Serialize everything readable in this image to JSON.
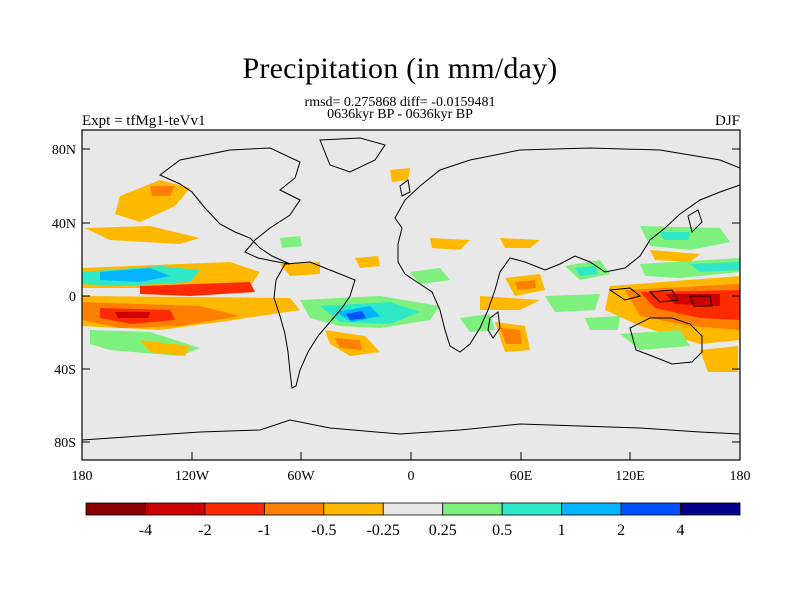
{
  "header": {
    "title": "Precipitation (in mm/day)",
    "stats_line": "rmsd= 0.275868 diff= -0.0159481",
    "period_line": "0636kyr BP - 0636kyr BP",
    "left_label": "Expt = tfMg1-teVv1",
    "right_label": "DJF"
  },
  "map": {
    "lat_ticks": [
      "80N",
      "40N",
      "0",
      "40S",
      "80S"
    ],
    "lon_ticks": [
      "180",
      "120W",
      "60W",
      "0",
      "60E",
      "120E",
      "180"
    ],
    "land_color": "#e8e8e8",
    "coast_color": "#000000"
  },
  "colorbar": {
    "labels": [
      "-4",
      "-2",
      "-1",
      "-0.5",
      "-0.25",
      "0.25",
      "0.5",
      "1",
      "2",
      "4"
    ],
    "colors": [
      "#8b0000",
      "#cd0000",
      "#ff2b00",
      "#ff7f00",
      "#ffb800",
      "#e8e8e8",
      "#7df07d",
      "#2ee8c8",
      "#00b4ff",
      "#0050ff",
      "#00008b"
    ]
  }
}
